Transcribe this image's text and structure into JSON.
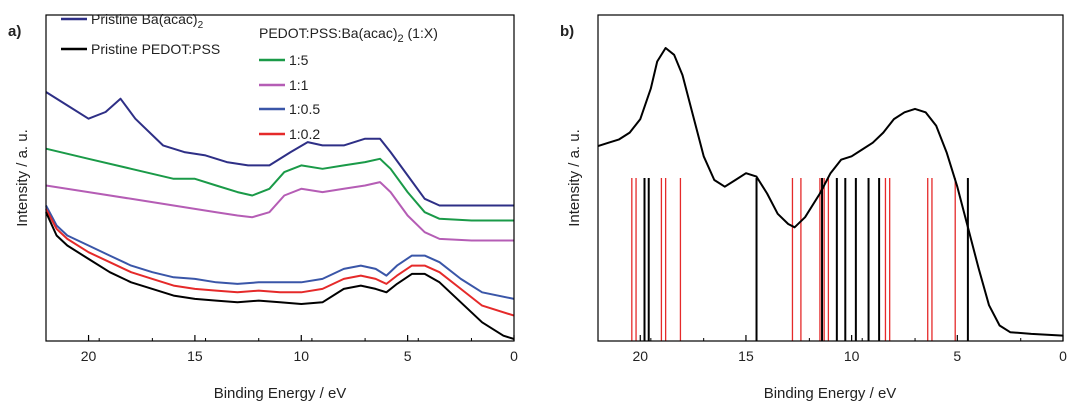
{
  "chart_data": [
    {
      "panel": "a)",
      "type": "line",
      "xlabel": "Binding Energy / eV",
      "ylabel": "Intensity / a. u.",
      "xlim": [
        22,
        0
      ],
      "x_reversed": true,
      "xticks": [
        20,
        15,
        10,
        5,
        0
      ],
      "y_ticks_shown": false,
      "legend": {
        "entries": [
          {
            "label": "Pristine Ba(acac)",
            "sub": "2",
            "color": "#2e2f86"
          },
          {
            "label": "Pristine PEDOT:PSS",
            "sub": "",
            "color": "#000000"
          }
        ],
        "group_title": "PEDOT:PSS:Ba(acac)",
        "group_title_sub": "2",
        "group_title_suffix": " (1:X)",
        "group_entries": [
          {
            "label": "1:5",
            "color": "#1a9a48"
          },
          {
            "label": "1:1",
            "color": "#b55db5"
          },
          {
            "label": "1:0.5",
            "color": "#3a56a8"
          },
          {
            "label": "1:0.2",
            "color": "#e52a2a"
          }
        ]
      },
      "series": [
        {
          "name": "Pristine Ba(acac)2",
          "color": "#2e2f86",
          "points": [
            [
              22,
              0.74
            ],
            [
              21,
              0.7
            ],
            [
              20,
              0.66
            ],
            [
              19.2,
              0.68
            ],
            [
              18.5,
              0.72
            ],
            [
              17.8,
              0.66
            ],
            [
              16.5,
              0.58
            ],
            [
              15.5,
              0.56
            ],
            [
              14.5,
              0.55
            ],
            [
              13.5,
              0.53
            ],
            [
              12.5,
              0.52
            ],
            [
              11.5,
              0.52
            ],
            [
              10.5,
              0.56
            ],
            [
              9.7,
              0.59
            ],
            [
              9,
              0.58
            ],
            [
              8,
              0.58
            ],
            [
              7,
              0.6
            ],
            [
              6.3,
              0.6
            ],
            [
              5.8,
              0.56
            ],
            [
              5,
              0.49
            ],
            [
              4.2,
              0.42
            ],
            [
              3.5,
              0.4
            ],
            [
              2,
              0.4
            ],
            [
              0,
              0.4
            ]
          ]
        },
        {
          "name": "1:5",
          "color": "#1a9a48",
          "points": [
            [
              22,
              0.57
            ],
            [
              20,
              0.54
            ],
            [
              18,
              0.51
            ],
            [
              16,
              0.48
            ],
            [
              15,
              0.48
            ],
            [
              14,
              0.46
            ],
            [
              13,
              0.44
            ],
            [
              12.3,
              0.43
            ],
            [
              11.5,
              0.45
            ],
            [
              10.8,
              0.5
            ],
            [
              10,
              0.52
            ],
            [
              9,
              0.51
            ],
            [
              8,
              0.52
            ],
            [
              7,
              0.53
            ],
            [
              6.3,
              0.54
            ],
            [
              5.8,
              0.51
            ],
            [
              5,
              0.44
            ],
            [
              4.2,
              0.38
            ],
            [
              3.5,
              0.36
            ],
            [
              2,
              0.355
            ],
            [
              0,
              0.355
            ]
          ]
        },
        {
          "name": "1:1",
          "color": "#b55db5",
          "points": [
            [
              22,
              0.46
            ],
            [
              20,
              0.44
            ],
            [
              18,
              0.42
            ],
            [
              16,
              0.4
            ],
            [
              14,
              0.38
            ],
            [
              13,
              0.37
            ],
            [
              12.3,
              0.365
            ],
            [
              11.5,
              0.38
            ],
            [
              10.8,
              0.43
            ],
            [
              10,
              0.45
            ],
            [
              9,
              0.44
            ],
            [
              8,
              0.45
            ],
            [
              7,
              0.46
            ],
            [
              6.3,
              0.47
            ],
            [
              5.8,
              0.44
            ],
            [
              5,
              0.37
            ],
            [
              4.2,
              0.32
            ],
            [
              3.5,
              0.3
            ],
            [
              2,
              0.295
            ],
            [
              0,
              0.295
            ]
          ]
        },
        {
          "name": "1:0.5",
          "color": "#3a56a8",
          "points": [
            [
              22,
              0.4
            ],
            [
              21.5,
              0.34
            ],
            [
              21,
              0.31
            ],
            [
              20,
              0.28
            ],
            [
              19,
              0.25
            ],
            [
              18,
              0.22
            ],
            [
              17,
              0.2
            ],
            [
              16,
              0.185
            ],
            [
              15,
              0.18
            ],
            [
              14,
              0.17
            ],
            [
              13,
              0.165
            ],
            [
              12,
              0.17
            ],
            [
              11,
              0.17
            ],
            [
              10,
              0.17
            ],
            [
              9,
              0.18
            ],
            [
              8,
              0.21
            ],
            [
              7.2,
              0.22
            ],
            [
              6.5,
              0.21
            ],
            [
              6,
              0.19
            ],
            [
              5.5,
              0.22
            ],
            [
              4.8,
              0.25
            ],
            [
              4.2,
              0.25
            ],
            [
              3.5,
              0.23
            ],
            [
              2.5,
              0.18
            ],
            [
              1.5,
              0.14
            ],
            [
              0,
              0.12
            ]
          ]
        },
        {
          "name": "1:0.2",
          "color": "#e52a2a",
          "points": [
            [
              22,
              0.39
            ],
            [
              21.5,
              0.33
            ],
            [
              21,
              0.3
            ],
            [
              20,
              0.26
            ],
            [
              19,
              0.23
            ],
            [
              18,
              0.2
            ],
            [
              17,
              0.18
            ],
            [
              16,
              0.16
            ],
            [
              15,
              0.15
            ],
            [
              14,
              0.145
            ],
            [
              13,
              0.14
            ],
            [
              12,
              0.145
            ],
            [
              11,
              0.14
            ],
            [
              10,
              0.14
            ],
            [
              9,
              0.15
            ],
            [
              8,
              0.18
            ],
            [
              7.2,
              0.19
            ],
            [
              6.5,
              0.18
            ],
            [
              6,
              0.165
            ],
            [
              5.5,
              0.19
            ],
            [
              4.8,
              0.22
            ],
            [
              4.2,
              0.22
            ],
            [
              3.5,
              0.2
            ],
            [
              2.5,
              0.15
            ],
            [
              1.5,
              0.1
            ],
            [
              0,
              0.07
            ]
          ]
        },
        {
          "name": "Pristine PEDOT:PSS",
          "color": "#000000",
          "points": [
            [
              22,
              0.38
            ],
            [
              21.5,
              0.31
            ],
            [
              21,
              0.28
            ],
            [
              20,
              0.24
            ],
            [
              19,
              0.2
            ],
            [
              18,
              0.17
            ],
            [
              17,
              0.15
            ],
            [
              16,
              0.13
            ],
            [
              15,
              0.12
            ],
            [
              14,
              0.115
            ],
            [
              13,
              0.11
            ],
            [
              12,
              0.115
            ],
            [
              11,
              0.11
            ],
            [
              10,
              0.105
            ],
            [
              9,
              0.11
            ],
            [
              8,
              0.15
            ],
            [
              7.2,
              0.16
            ],
            [
              6.5,
              0.15
            ],
            [
              6,
              0.14
            ],
            [
              5.5,
              0.165
            ],
            [
              4.8,
              0.195
            ],
            [
              4.2,
              0.195
            ],
            [
              3.5,
              0.17
            ],
            [
              2.5,
              0.11
            ],
            [
              1.5,
              0.05
            ],
            [
              0.5,
              0.01
            ],
            [
              0,
              0.0
            ]
          ]
        }
      ]
    },
    {
      "panel": "b)",
      "type": "line",
      "xlabel": "Binding Energy / eV",
      "ylabel": "Intensity / a. u.",
      "xlim": [
        22,
        0
      ],
      "x_reversed": true,
      "xticks": [
        20,
        15,
        10,
        5,
        0
      ],
      "y_ticks_shown": false,
      "series": [
        {
          "name": "spectrum",
          "color": "#000000",
          "points": [
            [
              22,
              0.57
            ],
            [
              21.5,
              0.58
            ],
            [
              21,
              0.59
            ],
            [
              20.5,
              0.61
            ],
            [
              20,
              0.65
            ],
            [
              19.5,
              0.74
            ],
            [
              19.2,
              0.82
            ],
            [
              18.8,
              0.86
            ],
            [
              18.4,
              0.84
            ],
            [
              18,
              0.78
            ],
            [
              17.5,
              0.66
            ],
            [
              17,
              0.54
            ],
            [
              16.5,
              0.47
            ],
            [
              16,
              0.45
            ],
            [
              15.5,
              0.47
            ],
            [
              15,
              0.49
            ],
            [
              14.5,
              0.48
            ],
            [
              14,
              0.43
            ],
            [
              13.5,
              0.37
            ],
            [
              13,
              0.34
            ],
            [
              12.7,
              0.33
            ],
            [
              12.2,
              0.36
            ],
            [
              11.5,
              0.43
            ],
            [
              11,
              0.49
            ],
            [
              10.5,
              0.53
            ],
            [
              10,
              0.54
            ],
            [
              9.5,
              0.56
            ],
            [
              9,
              0.58
            ],
            [
              8.5,
              0.61
            ],
            [
              8,
              0.65
            ],
            [
              7.5,
              0.67
            ],
            [
              7,
              0.68
            ],
            [
              6.5,
              0.67
            ],
            [
              6,
              0.63
            ],
            [
              5.5,
              0.55
            ],
            [
              5,
              0.45
            ],
            [
              4.5,
              0.33
            ],
            [
              4,
              0.21
            ],
            [
              3.5,
              0.1
            ],
            [
              3,
              0.04
            ],
            [
              2.5,
              0.02
            ],
            [
              1.5,
              0.015
            ],
            [
              0,
              0.01
            ]
          ]
        }
      ],
      "stick_lines": {
        "red": {
          "color": "#e52a2a",
          "positions": [
            20.4,
            20.2,
            19.0,
            18.8,
            18.1,
            12.8,
            12.4,
            11.5,
            11.3,
            11.1,
            8.4,
            8.2,
            6.4,
            6.2,
            5.1
          ]
        },
        "black": {
          "color": "#000000",
          "positions": [
            19.8,
            19.6,
            14.5,
            11.4,
            10.7,
            10.3,
            9.8,
            9.2,
            8.7,
            4.5
          ]
        }
      }
    }
  ]
}
